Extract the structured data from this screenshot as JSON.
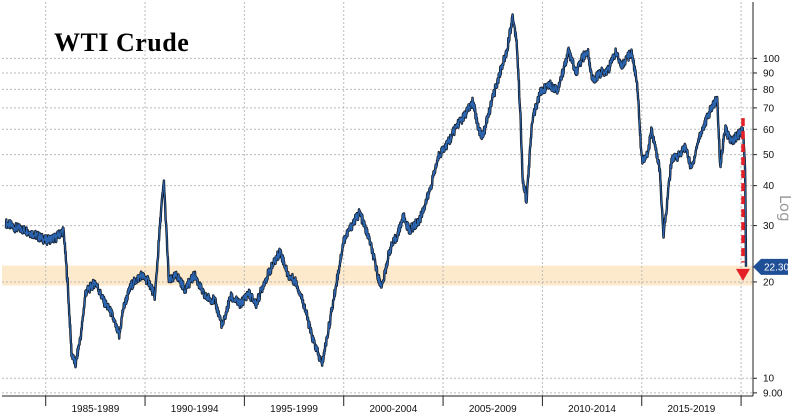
{
  "chart_data": {
    "type": "line",
    "title": "WTI Crude",
    "y_scale": "log",
    "y_axis_side": "right",
    "y_axis_label": "Log",
    "ylim": [
      8.8,
      150
    ],
    "y_ticks": [
      9,
      10,
      20,
      30,
      40,
      50,
      60,
      70,
      80,
      90,
      100
    ],
    "y_tick_labels": [
      "9.00",
      "10",
      "20",
      "30",
      "40",
      "50",
      "60",
      "70",
      "80",
      "90",
      "100"
    ],
    "xlim": [
      1982.8,
      2020.6
    ],
    "x_categories": [
      "1985-1989",
      "1990-1994",
      "1995-1999",
      "2000-2004",
      "2005-2009",
      "2010-2014",
      "2015-2019"
    ],
    "x_category_ranges": [
      [
        1985,
        1990
      ],
      [
        1990,
        1995
      ],
      [
        1995,
        2000
      ],
      [
        2000,
        2005
      ],
      [
        2005,
        2010
      ],
      [
        2010,
        2015
      ],
      [
        2015,
        2020
      ]
    ],
    "grid": true,
    "last_value_label": "22.30",
    "highlight_band": [
      19.5,
      22.5
    ],
    "annotation": "red dashed arrow pointing down from ~65 to ~20 at the end of the series",
    "colors": {
      "line_dark": "#10131a",
      "line_blue": "#2f6fc0",
      "band": "#fde9cc",
      "last_box": "#1f4f96",
      "arrow": "#e41f26",
      "grid": "#bbbbbb"
    },
    "series": [
      {
        "x": [
          1983.0,
          1983.5,
          1984.0,
          1984.5,
          1985.0,
          1985.5,
          1985.9,
          1986.1,
          1986.3,
          1986.5,
          1986.8,
          1987.0,
          1987.5,
          1987.9,
          1988.3,
          1988.7,
          1988.9,
          1989.3,
          1989.8,
          1990.2,
          1990.5,
          1990.8,
          1990.95,
          1991.2,
          1991.6,
          1992.0,
          1992.5,
          1993.0,
          1993.5,
          1993.9,
          1994.3,
          1994.8,
          1995.2,
          1995.6,
          1996.0,
          1996.5,
          1996.8,
          1997.2,
          1997.6,
          1998.0,
          1998.4,
          1998.9,
          1999.3,
          1999.7,
          2000.0,
          2000.4,
          2000.8,
          2001.3,
          2001.8,
          2001.95,
          2002.3,
          2002.7,
          2003.0,
          2003.3,
          2003.8,
          2004.3,
          2004.8,
          2005.3,
          2005.7,
          2006.0,
          2006.5,
          2006.8,
          2007.0,
          2007.5,
          2007.9,
          2008.2,
          2008.5,
          2008.7,
          2008.9,
          2009.0,
          2009.2,
          2009.5,
          2009.9,
          2010.3,
          2010.8,
          2011.3,
          2011.7,
          2012.0,
          2012.3,
          2012.5,
          2012.9,
          2013.3,
          2013.7,
          2014.0,
          2014.5,
          2014.8,
          2015.0,
          2015.3,
          2015.5,
          2015.9,
          2016.1,
          2016.5,
          2016.9,
          2017.2,
          2017.5,
          2017.9,
          2018.2,
          2018.5,
          2018.8,
          2018.95,
          2019.2,
          2019.5,
          2019.9,
          2020.1,
          2020.2,
          2020.25
        ],
        "values": [
          30.5,
          29.5,
          29.0,
          28.0,
          27.0,
          27.5,
          29.0,
          20.0,
          12.0,
          11.0,
          14.0,
          18.5,
          20.0,
          17.5,
          16.0,
          13.5,
          16.5,
          19.5,
          21.0,
          20.0,
          18.0,
          33.0,
          41.0,
          20.0,
          21.0,
          19.0,
          21.0,
          18.0,
          17.5,
          14.5,
          18.0,
          17.0,
          18.5,
          17.0,
          20.0,
          23.0,
          25.0,
          21.0,
          20.0,
          17.0,
          13.5,
          11.0,
          15.0,
          21.0,
          27.0,
          30.0,
          33.0,
          27.0,
          20.0,
          19.5,
          25.0,
          28.0,
          32.0,
          29.0,
          31.0,
          38.0,
          50.0,
          55.0,
          62.0,
          65.0,
          73.0,
          60.0,
          57.0,
          75.0,
          92.0,
          105.0,
          135.0,
          115.0,
          65.0,
          42.0,
          36.0,
          65.0,
          78.0,
          83.0,
          80.0,
          105.0,
          90.0,
          100.0,
          105.0,
          85.0,
          90.0,
          92.0,
          105.0,
          95.0,
          105.0,
          80.0,
          48.0,
          50.0,
          60.0,
          45.0,
          28.0,
          48.0,
          50.0,
          53.0,
          45.0,
          57.0,
          63.0,
          70.0,
          75.0,
          46.0,
          60.0,
          55.0,
          58.0,
          60.0,
          45.0,
          22.3
        ]
      }
    ]
  }
}
